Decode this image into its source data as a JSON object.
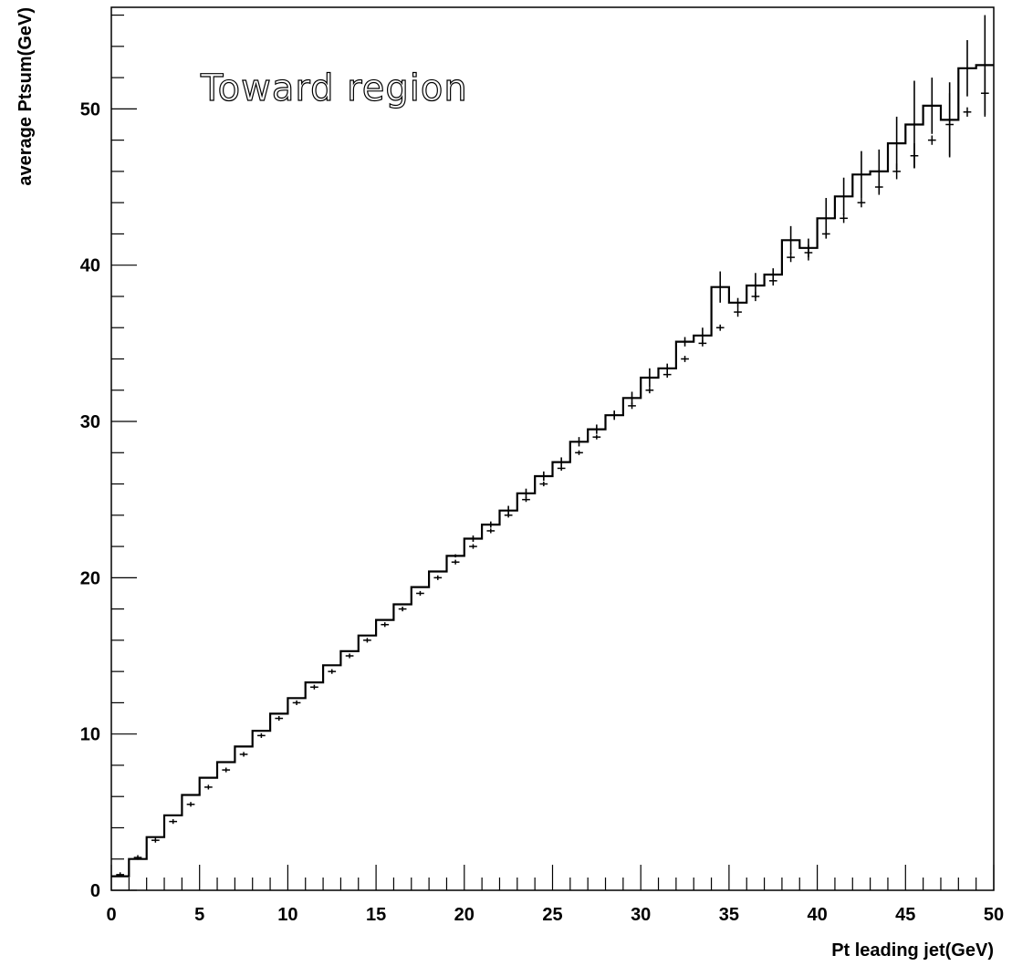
{
  "chart_data": {
    "type": "line",
    "title": "",
    "xlabel": "Pt leading jet(GeV)",
    "ylabel": "average Ptsum(GeV)",
    "annotation": "Toward region",
    "xlim": [
      0,
      50
    ],
    "ylim": [
      0,
      56.5
    ],
    "x_ticks": [
      0,
      5,
      10,
      15,
      20,
      25,
      30,
      35,
      40,
      45,
      50
    ],
    "y_ticks": [
      0,
      10,
      20,
      30,
      40,
      50
    ],
    "grid": false,
    "legend": "none",
    "series": [
      {
        "style": "histogram-step",
        "bin_width": 1,
        "x": [
          0.5,
          1.5,
          2.5,
          3.5,
          4.5,
          5.5,
          6.5,
          7.5,
          8.5,
          9.5,
          10.5,
          11.5,
          12.5,
          13.5,
          14.5,
          15.5,
          16.5,
          17.5,
          18.5,
          19.5,
          20.5,
          21.5,
          22.5,
          23.5,
          24.5,
          25.5,
          26.5,
          27.5,
          28.5,
          29.5,
          30.5,
          31.5,
          32.5,
          33.5,
          34.5,
          35.5,
          36.5,
          37.5,
          38.5,
          39.5,
          40.5,
          41.5,
          42.5,
          43.5,
          44.5,
          45.5,
          46.5,
          47.5,
          48.5,
          49.5
        ],
        "y": [
          0.9,
          2.0,
          3.4,
          4.8,
          6.1,
          7.2,
          8.2,
          9.2,
          10.2,
          11.3,
          12.3,
          13.3,
          14.4,
          15.3,
          16.3,
          17.3,
          18.3,
          19.4,
          20.4,
          21.4,
          22.5,
          23.4,
          24.3,
          25.4,
          26.5,
          27.4,
          28.7,
          29.5,
          30.4,
          31.5,
          32.8,
          33.4,
          35.1,
          35.5,
          38.6,
          37.6,
          38.7,
          39.4,
          41.6,
          41.1,
          43.0,
          44.4,
          45.8,
          46.0,
          47.8,
          49.0,
          50.2,
          49.3,
          52.6,
          52.8
        ],
        "y_err": [
          0,
          0,
          0,
          0,
          0,
          0,
          0,
          0,
          0,
          0,
          0,
          0,
          0,
          0,
          0,
          0,
          0,
          0,
          0,
          0.1,
          0.2,
          0.2,
          0.3,
          0.3,
          0.3,
          0.3,
          0.3,
          0.3,
          0.3,
          0.4,
          0.6,
          0.3,
          0.3,
          0.5,
          1.0,
          0.3,
          0.8,
          0.4,
          0.9,
          0.6,
          1.3,
          1.2,
          1.5,
          1.4,
          1.7,
          2.8,
          1.8,
          2.4,
          1.8,
          3.2
        ]
      },
      {
        "style": "points-with-errors",
        "x": [
          0.5,
          1.5,
          2.5,
          3.5,
          4.5,
          5.5,
          6.5,
          7.5,
          8.5,
          9.5,
          10.5,
          11.5,
          12.5,
          13.5,
          14.5,
          15.5,
          16.5,
          17.5,
          18.5,
          19.5,
          20.5,
          21.5,
          22.5,
          23.5,
          24.5,
          25.5,
          26.5,
          27.5,
          28.5,
          29.5,
          30.5,
          31.5,
          32.5,
          33.5,
          34.5,
          35.5,
          36.5,
          37.5,
          38.5,
          39.5,
          40.5,
          41.5,
          42.5,
          43.5,
          44.5,
          45.5,
          46.5,
          47.5,
          48.5,
          49.5
        ],
        "y": [
          1.0,
          2.1,
          3.2,
          4.4,
          5.5,
          6.6,
          7.7,
          8.7,
          9.9,
          11.0,
          12.0,
          13.0,
          14.0,
          15.0,
          16.0,
          17.0,
          18.0,
          19.0,
          20.0,
          21.0,
          22.0,
          23.0,
          24.0,
          25.0,
          26.0,
          27.0,
          28.0,
          29.0,
          30.4,
          31.0,
          32.0,
          33.0,
          34.0,
          35.0,
          36.0,
          37.0,
          38.0,
          39.0,
          40.5,
          40.8,
          42.0,
          43.0,
          44.0,
          45.0,
          46.0,
          47.0,
          48.0,
          49.0,
          49.8,
          51.0
        ],
        "y_err": [
          0.1,
          0.1,
          0.1,
          0.1,
          0.1,
          0.1,
          0.1,
          0.1,
          0.1,
          0.1,
          0.1,
          0.1,
          0.1,
          0.1,
          0.1,
          0.1,
          0.1,
          0.1,
          0.1,
          0.1,
          0.1,
          0.1,
          0.1,
          0.1,
          0.1,
          0.1,
          0.1,
          0.1,
          0.2,
          0.2,
          0.2,
          0.2,
          0.2,
          0.2,
          0.2,
          0.3,
          0.3,
          0.3,
          0.3,
          0.5,
          0.3,
          0.3,
          0.3,
          0.5,
          0.5,
          0.8,
          0.3,
          2.0,
          0.3,
          1.5
        ]
      }
    ]
  }
}
